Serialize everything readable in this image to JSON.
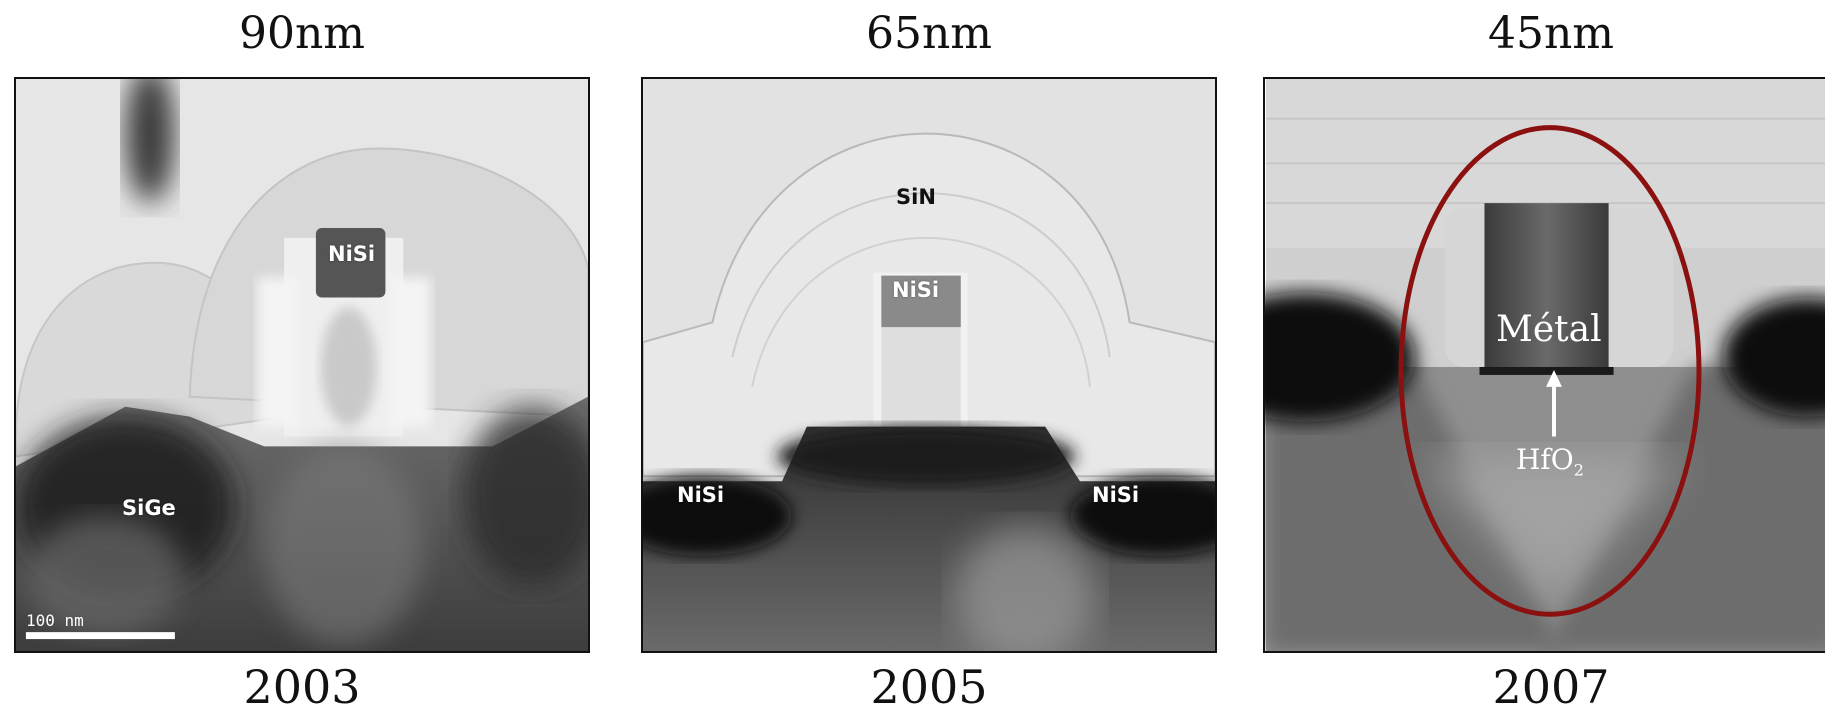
{
  "panels": [
    {
      "node": "90nm",
      "year": "2003",
      "labels": {
        "nisi_gate": "NiSi",
        "sige": "SiGe",
        "scale_bar": "100 nm"
      }
    },
    {
      "node": "65nm",
      "year": "2005",
      "labels": {
        "sin": "SiN",
        "nisi_gate": "NiSi",
        "nisi_left": "NiSi",
        "nisi_right": "NiSi"
      }
    },
    {
      "node": "45nm",
      "year": "2007",
      "labels": {
        "metal": "Métal",
        "hfo_base": "HfO",
        "hfo_sub": "2"
      }
    }
  ],
  "colors": {
    "highlight_ellipse": "#8b1010"
  }
}
